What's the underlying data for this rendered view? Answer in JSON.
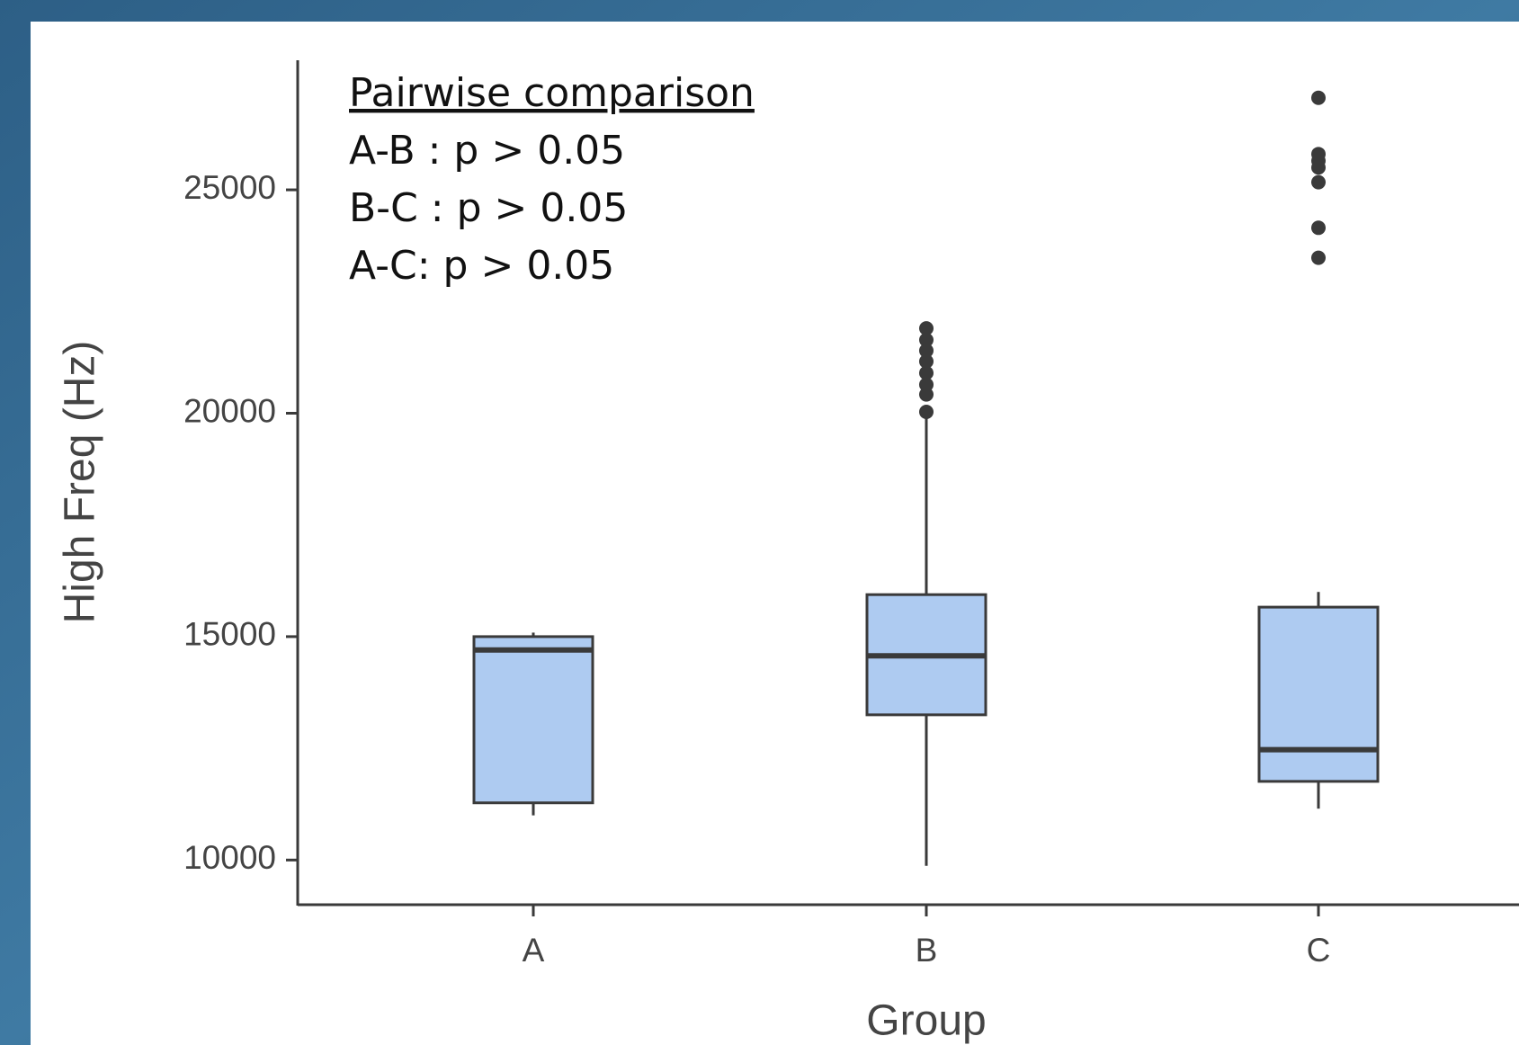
{
  "chart_data": {
    "type": "box",
    "x_label": "Group",
    "y_label": "High Freq (Hz)",
    "annotations": [
      "Pairwise comparison",
      "A-B : p > 0.05",
      "B-C : p > 0.05",
      "A-C: p > 0.05"
    ],
    "categories": [
      "A",
      "B",
      "C"
    ],
    "color": "#aecbf1",
    "boxes": [
      {
        "min": 11000,
        "q1": 11280,
        "median": 14700,
        "q3": 15000,
        "max": 15090,
        "outliers": []
      },
      {
        "min": 9870,
        "q1": 13250,
        "median": 14570,
        "q3": 15940,
        "max": 20030,
        "outliers": [
          20030,
          20420,
          20640,
          20900,
          21160,
          21400,
          21640,
          21900
        ]
      },
      {
        "min": 11150,
        "q1": 11760,
        "median": 12470,
        "q3": 15660,
        "max": 16000,
        "outliers": [
          23480,
          24150,
          25170,
          25500,
          25650,
          25800,
          27060
        ]
      }
    ],
    "ylim": [
      9000,
      27900
    ],
    "yticks": [
      10000,
      15000,
      20000,
      25000
    ]
  }
}
